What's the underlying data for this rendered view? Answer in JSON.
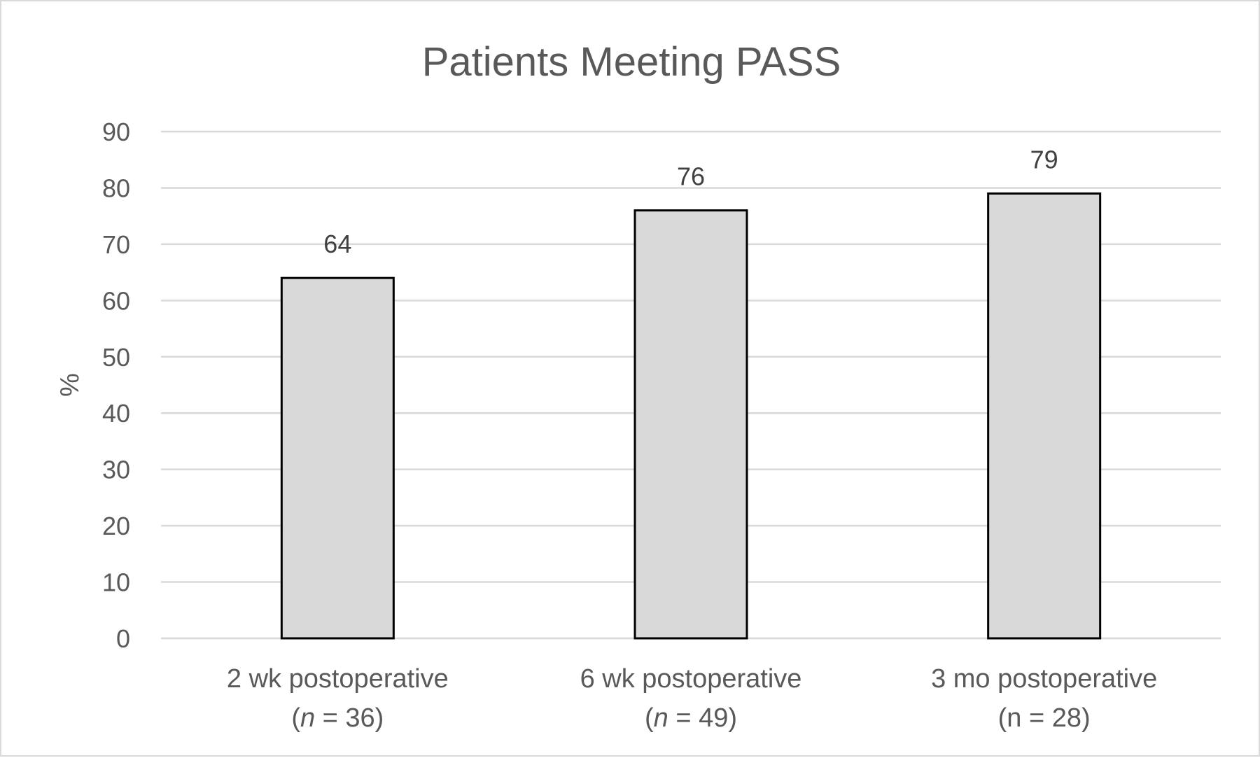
{
  "chart_data": {
    "type": "bar",
    "title": "Patients Meeting PASS",
    "ylabel": "%",
    "xlabel": "",
    "ylim": [
      0,
      90
    ],
    "ytick_step": 10,
    "grid": true,
    "legend": "none",
    "categories": [
      {
        "label": "2 wk postoperative",
        "n_prefix": "(",
        "n_symbol": "n",
        "n_suffix": " = 36)",
        "n_italic": true
      },
      {
        "label": "6 wk postoperative",
        "n_prefix": "(",
        "n_symbol": "n",
        "n_suffix": " =  49)",
        "n_italic": true
      },
      {
        "label": "3 mo postoperative",
        "n_prefix": "(",
        "n_symbol": "n",
        "n_suffix": " = 28)",
        "n_italic": false
      }
    ],
    "values": [
      64,
      76,
      79
    ],
    "colors": {
      "bar_fill": "#d9d9d9",
      "bar_stroke": "#000000",
      "grid": "#d9d9d9",
      "text": "#595959"
    }
  }
}
